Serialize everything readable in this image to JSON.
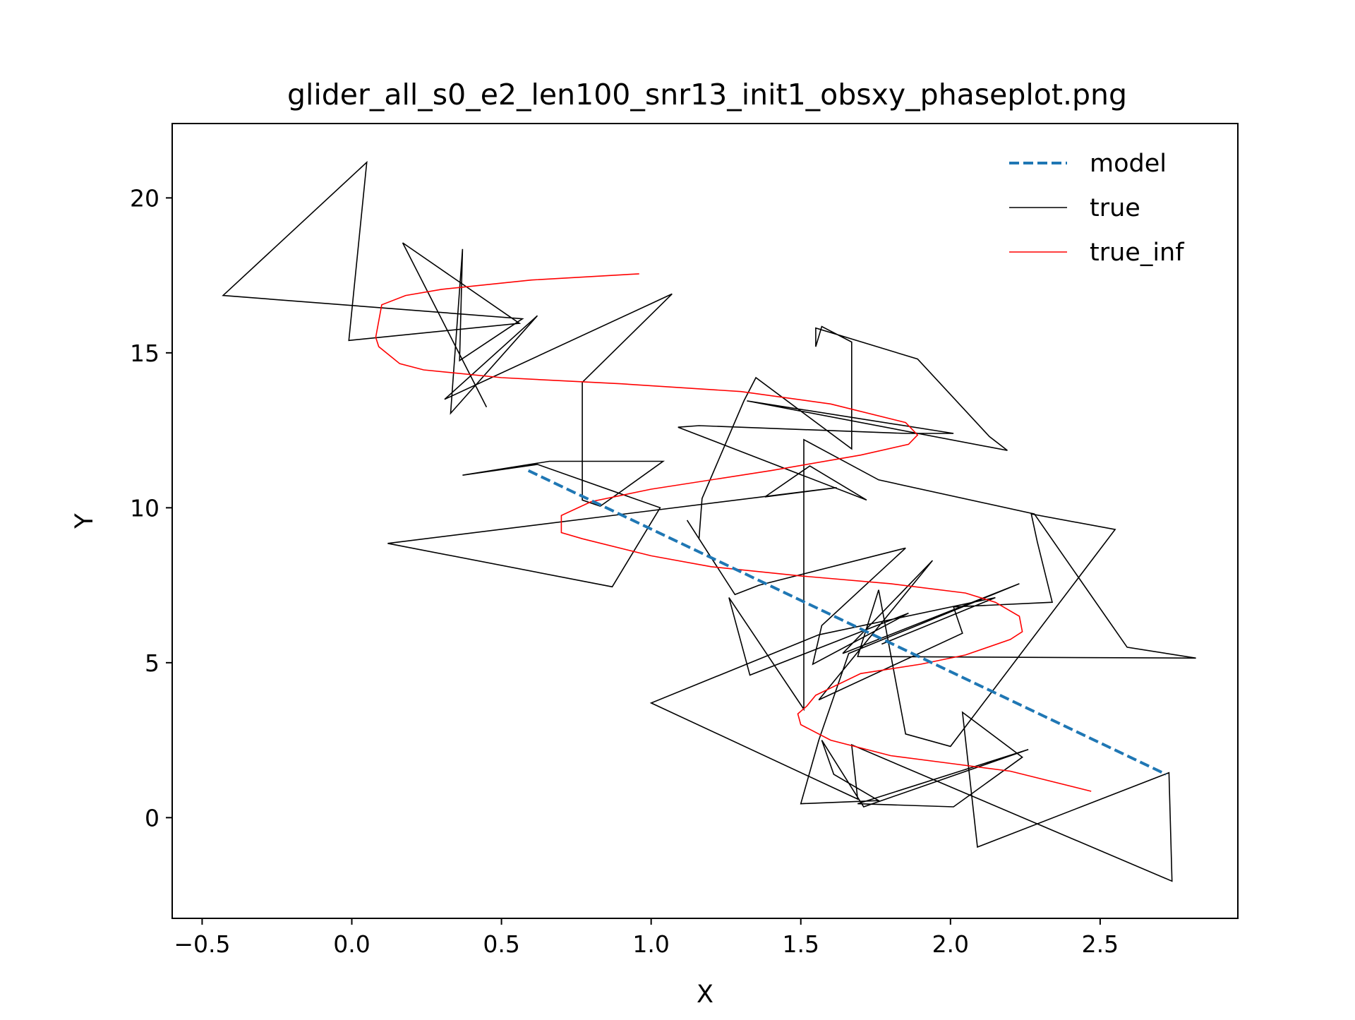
{
  "chart_data": {
    "type": "line",
    "title": "glider_all_s0_e2_len100_snr13_init1_obsxy_phaseplot.png",
    "xlabel": "X",
    "ylabel": "Y",
    "xlim": [
      -0.6,
      2.96
    ],
    "ylim": [
      -3.25,
      22.4
    ],
    "xticks": [
      -0.5,
      0.0,
      0.5,
      1.0,
      1.5,
      2.0,
      2.5
    ],
    "xtick_labels": [
      "−0.5",
      "0.0",
      "0.5",
      "1.0",
      "1.5",
      "2.0",
      "2.5"
    ],
    "yticks": [
      0,
      5,
      10,
      15,
      20
    ],
    "ytick_labels": [
      "0",
      "5",
      "10",
      "15",
      "20"
    ],
    "grid": false,
    "legend": {
      "position": "top-right",
      "entries": [
        "model",
        "true",
        "true_inf"
      ]
    },
    "series": [
      {
        "name": "model",
        "color": "#1f77b4",
        "style": "dashed",
        "points": [
          [
            0.59,
            11.2
          ],
          [
            2.72,
            1.4
          ]
        ]
      },
      {
        "name": "true",
        "color": "#000000",
        "style": "solid",
        "points": [
          [
            0.45,
            13.25
          ],
          [
            0.17,
            18.55
          ],
          [
            0.56,
            15.95
          ],
          [
            -0.01,
            15.4
          ],
          [
            0.05,
            21.15
          ],
          [
            -0.43,
            16.85
          ],
          [
            0.57,
            16.1
          ],
          [
            0.36,
            14.75
          ],
          [
            0.37,
            18.35
          ],
          [
            0.33,
            13.05
          ],
          [
            0.62,
            16.2
          ],
          [
            0.31,
            13.5
          ],
          [
            1.07,
            16.9
          ],
          [
            0.77,
            14.05
          ],
          [
            0.77,
            10.25
          ],
          [
            0.83,
            10.05
          ],
          [
            0.91,
            10.6
          ],
          [
            1.04,
            11.5
          ],
          [
            0.66,
            11.5
          ],
          [
            0.37,
            11.05
          ],
          [
            0.62,
            11.4
          ],
          [
            1.03,
            10.0
          ],
          [
            0.87,
            7.45
          ],
          [
            0.12,
            8.85
          ],
          [
            1.62,
            10.65
          ],
          [
            1.38,
            10.35
          ],
          [
            1.53,
            11.35
          ],
          [
            1.72,
            10.25
          ],
          [
            1.09,
            12.6
          ],
          [
            1.16,
            12.65
          ],
          [
            1.85,
            12.4
          ],
          [
            2.01,
            12.4
          ],
          [
            1.32,
            13.45
          ],
          [
            2.19,
            11.85
          ],
          [
            2.13,
            12.3
          ],
          [
            1.89,
            14.8
          ],
          [
            1.55,
            15.8
          ],
          [
            1.55,
            15.2
          ],
          [
            1.57,
            15.85
          ],
          [
            1.67,
            15.35
          ],
          [
            1.67,
            11.9
          ],
          [
            1.35,
            14.2
          ],
          [
            1.31,
            13.45
          ],
          [
            1.17,
            10.3
          ],
          [
            1.16,
            9.0
          ],
          [
            1.12,
            9.6
          ],
          [
            1.28,
            7.2
          ],
          [
            1.36,
            7.5
          ],
          [
            1.85,
            8.7
          ],
          [
            1.57,
            6.2
          ],
          [
            1.54,
            4.95
          ],
          [
            1.86,
            6.6
          ],
          [
            1.33,
            4.6
          ],
          [
            1.26,
            7.1
          ],
          [
            1.51,
            3.5
          ],
          [
            1.51,
            12.2
          ],
          [
            1.76,
            10.9
          ],
          [
            2.28,
            9.8
          ],
          [
            2.59,
            5.5
          ],
          [
            2.82,
            5.15
          ],
          [
            1.69,
            5.2
          ],
          [
            1.76,
            7.35
          ],
          [
            1.85,
            2.7
          ],
          [
            2.0,
            2.3
          ],
          [
            2.55,
            9.3
          ],
          [
            2.27,
            9.8
          ],
          [
            2.29,
            8.9
          ],
          [
            2.34,
            6.95
          ],
          [
            2.01,
            6.8
          ],
          [
            2.04,
            5.95
          ],
          [
            1.56,
            3.8
          ],
          [
            1.94,
            8.3
          ],
          [
            1.64,
            5.3
          ],
          [
            2.23,
            7.55
          ],
          [
            1.66,
            5.3
          ],
          [
            1.56,
            2.5
          ],
          [
            1.5,
            0.45
          ],
          [
            1.76,
            0.55
          ],
          [
            1.61,
            1.4
          ],
          [
            1.57,
            2.5
          ],
          [
            1.71,
            0.35
          ],
          [
            2.26,
            2.2
          ],
          [
            1.69,
            0.45
          ],
          [
            2.01,
            0.35
          ],
          [
            2.24,
            1.95
          ],
          [
            2.04,
            3.4
          ],
          [
            2.09,
            -0.95
          ],
          [
            2.73,
            1.45
          ],
          [
            2.74,
            -2.05
          ],
          [
            1.67,
            2.35
          ],
          [
            1.69,
            0.6
          ],
          [
            1.0,
            3.7
          ],
          [
            1.56,
            5.9
          ],
          [
            2.15,
            7.1
          ],
          [
            1.77,
            5.6
          ]
        ]
      },
      {
        "name": "true_inf",
        "color": "#ff0000",
        "style": "solid",
        "points": [
          [
            0.96,
            17.55
          ],
          [
            0.6,
            17.35
          ],
          [
            0.3,
            17.05
          ],
          [
            0.18,
            16.85
          ],
          [
            0.1,
            16.55
          ],
          [
            0.08,
            15.5
          ],
          [
            0.09,
            15.2
          ],
          [
            0.16,
            14.65
          ],
          [
            0.24,
            14.45
          ],
          [
            0.5,
            14.2
          ],
          [
            0.9,
            14.0
          ],
          [
            1.3,
            13.75
          ],
          [
            1.6,
            13.35
          ],
          [
            1.85,
            12.75
          ],
          [
            1.89,
            12.35
          ],
          [
            1.86,
            12.05
          ],
          [
            1.7,
            11.7
          ],
          [
            1.4,
            11.2
          ],
          [
            1.0,
            10.6
          ],
          [
            0.8,
            10.2
          ],
          [
            0.7,
            9.75
          ],
          [
            0.7,
            9.2
          ],
          [
            0.77,
            9.0
          ],
          [
            1.0,
            8.45
          ],
          [
            1.2,
            8.1
          ],
          [
            1.5,
            7.8
          ],
          [
            1.8,
            7.55
          ],
          [
            2.05,
            7.25
          ],
          [
            2.15,
            6.95
          ],
          [
            2.23,
            6.5
          ],
          [
            2.24,
            6.0
          ],
          [
            2.2,
            5.75
          ],
          [
            2.05,
            5.25
          ],
          [
            1.9,
            4.95
          ],
          [
            1.7,
            4.65
          ],
          [
            1.55,
            3.95
          ],
          [
            1.52,
            3.6
          ],
          [
            1.49,
            3.35
          ],
          [
            1.5,
            3.0
          ],
          [
            1.6,
            2.5
          ],
          [
            1.8,
            2.0
          ],
          [
            2.0,
            1.75
          ],
          [
            2.2,
            1.5
          ],
          [
            2.47,
            0.85
          ]
        ]
      }
    ]
  }
}
